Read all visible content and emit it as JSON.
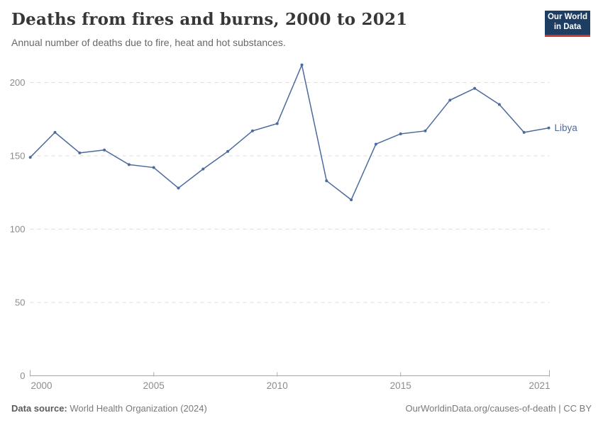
{
  "header": {
    "title": "Deaths from fires and burns, 2000 to 2021",
    "subtitle": "Annual number of deaths due to fire, heat and hot substances."
  },
  "logo": {
    "line1": "Our World",
    "line2": "in Data",
    "bg_color": "#1d3d63",
    "accent_color": "#d0342c"
  },
  "chart_data": {
    "type": "line",
    "title": "Deaths from fires and burns, 2000 to 2021",
    "xlabel": "",
    "ylabel": "",
    "x": [
      2000,
      2001,
      2002,
      2003,
      2004,
      2005,
      2006,
      2007,
      2008,
      2009,
      2010,
      2011,
      2012,
      2013,
      2014,
      2015,
      2016,
      2017,
      2018,
      2019,
      2020,
      2021
    ],
    "series": [
      {
        "name": "Libya",
        "color": "#4C6A9C",
        "values": [
          149,
          166,
          152,
          154,
          144,
          142,
          128,
          141,
          153,
          167,
          172,
          212,
          133,
          120,
          158,
          165,
          167,
          188,
          196,
          185,
          166,
          169
        ]
      }
    ],
    "ylim": [
      0,
      220
    ],
    "yticks": [
      0,
      50,
      100,
      150,
      200
    ],
    "xticks": [
      2000,
      2005,
      2010,
      2015,
      2021
    ],
    "grid": "horizontal-dashed",
    "grid_color": "#dcdcdc",
    "axis_color": "#a8a8a8",
    "tick_label_color": "#8c8c8c",
    "legend_position": "end-of-line-label"
  },
  "footer": {
    "source_label": "Data source:",
    "source_value": "World Health Organization (2024)",
    "link": "OurWorldinData.org/causes-of-death | CC BY"
  }
}
